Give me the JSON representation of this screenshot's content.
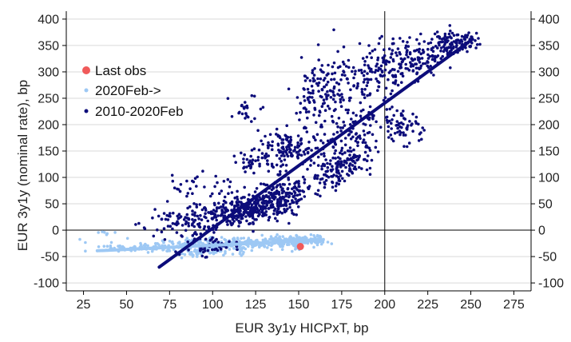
{
  "chart_data": {
    "type": "scatter",
    "title": "",
    "xlabel": "EUR 3y1y HICPxT, bp",
    "ylabel": "EUR 3y1y (nominal rate), bp",
    "xlim": [
      15,
      285
    ],
    "ylim": [
      -115,
      415
    ],
    "x_ticks": [
      25,
      50,
      75,
      100,
      125,
      150,
      175,
      200,
      225,
      250,
      275
    ],
    "y_ticks": [
      -100,
      -50,
      0,
      50,
      100,
      150,
      200,
      250,
      300,
      350,
      400
    ],
    "y_axis_right_mirror": true,
    "grid": {
      "horizontal": true,
      "vertical": false
    },
    "reference_lines": {
      "x": 200,
      "y": 0
    },
    "legend_position": "upper-left",
    "colors": {
      "last_obs": "#f05a5a",
      "post_2020": "#9dc8f4",
      "pre_2020": "#0c0c7a"
    },
    "series": [
      {
        "name": "Last obs",
        "marker": "circle",
        "points": [
          [
            151,
            -31
          ]
        ]
      },
      {
        "name": "2020Feb->",
        "marker": "dot",
        "clusters": [
          {
            "cx": 60,
            "cy": -32,
            "sx": 18,
            "sy": 5,
            "n": 90
          },
          {
            "cx": 95,
            "cy": -28,
            "sx": 12,
            "sy": 7,
            "n": 120
          },
          {
            "cx": 125,
            "cy": -25,
            "sx": 14,
            "sy": 5,
            "n": 150
          },
          {
            "cx": 148,
            "cy": -20,
            "sx": 8,
            "sy": 5,
            "n": 120
          },
          {
            "cx": 158,
            "cy": -18,
            "sx": 4,
            "sy": 6,
            "n": 40
          },
          {
            "cx": 95,
            "cy": -42,
            "sx": 10,
            "sy": 4,
            "n": 50
          },
          {
            "cx": 38,
            "cy": -5,
            "sx": 4,
            "sy": 3,
            "n": 6
          }
        ],
        "fit_line": [
          [
            33,
            -39
          ],
          [
            163,
            -19
          ]
        ]
      },
      {
        "name": "2010-2020Feb",
        "marker": "dot",
        "clusters": [
          {
            "cx": 85,
            "cy": 15,
            "sx": 12,
            "sy": 14,
            "n": 90
          },
          {
            "cx": 98,
            "cy": -30,
            "sx": 8,
            "sy": 10,
            "n": 50
          },
          {
            "cx": 108,
            "cy": 30,
            "sx": 10,
            "sy": 12,
            "n": 130
          },
          {
            "cx": 125,
            "cy": 45,
            "sx": 10,
            "sy": 12,
            "n": 220
          },
          {
            "cx": 142,
            "cy": 70,
            "sx": 7,
            "sy": 18,
            "n": 150
          },
          {
            "cx": 125,
            "cy": 130,
            "sx": 6,
            "sy": 10,
            "n": 40
          },
          {
            "cx": 145,
            "cy": 160,
            "sx": 10,
            "sy": 18,
            "n": 130
          },
          {
            "cx": 168,
            "cy": 100,
            "sx": 7,
            "sy": 12,
            "n": 60
          },
          {
            "cx": 180,
            "cy": 130,
            "sx": 8,
            "sy": 12,
            "n": 80
          },
          {
            "cx": 185,
            "cy": 190,
            "sx": 10,
            "sy": 25,
            "n": 110
          },
          {
            "cx": 160,
            "cy": 250,
            "sx": 6,
            "sy": 25,
            "n": 70
          },
          {
            "cx": 175,
            "cy": 280,
            "sx": 10,
            "sy": 30,
            "n": 90
          },
          {
            "cx": 195,
            "cy": 300,
            "sx": 8,
            "sy": 25,
            "n": 80
          },
          {
            "cx": 210,
            "cy": 200,
            "sx": 6,
            "sy": 15,
            "n": 60
          },
          {
            "cx": 215,
            "cy": 320,
            "sx": 10,
            "sy": 18,
            "n": 130
          },
          {
            "cx": 238,
            "cy": 355,
            "sx": 7,
            "sy": 12,
            "n": 120
          },
          {
            "cx": 118,
            "cy": 230,
            "sx": 5,
            "sy": 15,
            "n": 25
          },
          {
            "cx": 90,
            "cy": 85,
            "sx": 10,
            "sy": 12,
            "n": 30
          }
        ],
        "fit_line": [
          [
            69,
            -70
          ],
          [
            251,
            362
          ]
        ]
      }
    ],
    "legend": [
      "Last obs",
      "2020Feb->",
      "2010-2020Feb"
    ]
  }
}
